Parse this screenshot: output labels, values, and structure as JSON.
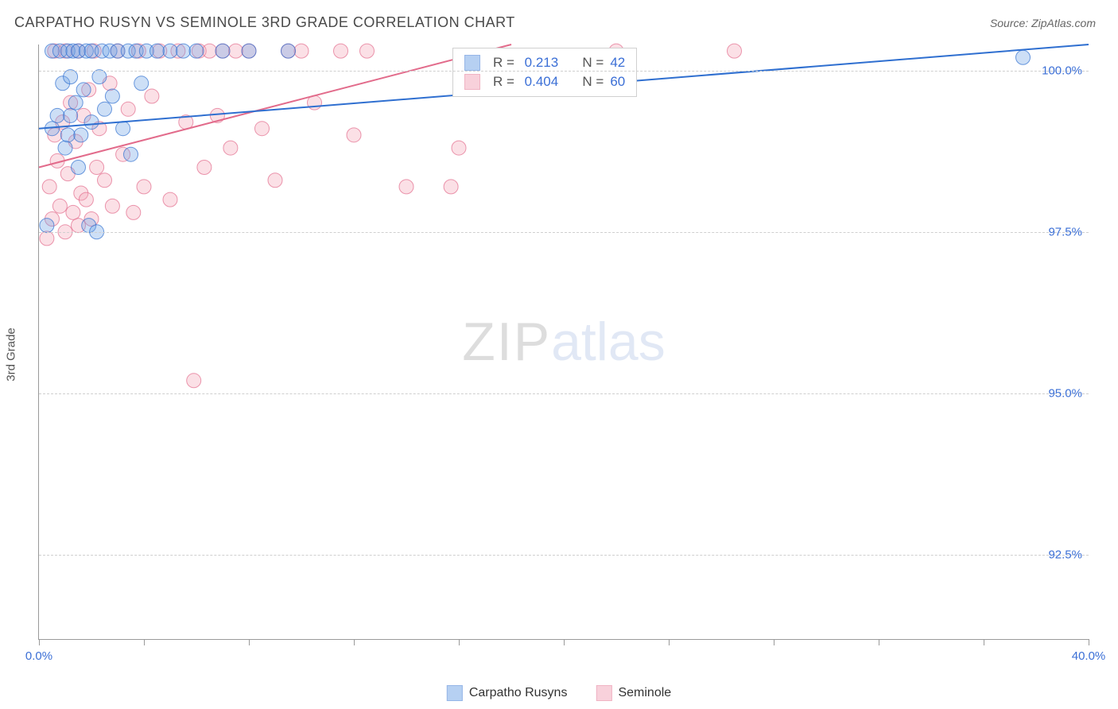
{
  "title": "CARPATHO RUSYN VS SEMINOLE 3RD GRADE CORRELATION CHART",
  "source_label": "Source: ZipAtlas.com",
  "watermark": {
    "part1": "ZIP",
    "part2": "atlas"
  },
  "ylabel": "3rd Grade",
  "chart": {
    "type": "scatter",
    "xlim": [
      0,
      40
    ],
    "ylim": [
      91.2,
      100.4
    ],
    "x_tick_positions": [
      0,
      4,
      8,
      12,
      16,
      20,
      24,
      28,
      32,
      36,
      40
    ],
    "x_tick_labels": {
      "0": "0.0%",
      "40": "40.0%"
    },
    "y_gridlines": [
      92.5,
      95.0,
      97.5,
      100.0
    ],
    "y_tick_labels": [
      "92.5%",
      "95.0%",
      "97.5%",
      "100.0%"
    ],
    "grid_color": "#cfcfcf",
    "axis_color": "#9a9a9a",
    "background_color": "#ffffff",
    "tick_label_color": "#3b6fd6",
    "marker_radius": 9,
    "marker_opacity": 0.35,
    "line_width": 2,
    "title_fontsize": 18,
    "label_fontsize": 15
  },
  "series": {
    "carpatho": {
      "label": "Carpatho Rusyns",
      "color_fill": "#6fa3e6",
      "color_stroke": "#2f6fd0",
      "R": "0.213",
      "N": "42",
      "trend": {
        "x1": 0,
        "y1": 99.1,
        "x2": 40,
        "y2": 100.4
      },
      "points": [
        [
          0.3,
          97.6
        ],
        [
          0.5,
          99.1
        ],
        [
          0.5,
          100.3
        ],
        [
          0.7,
          99.3
        ],
        [
          0.8,
          100.3
        ],
        [
          0.9,
          99.8
        ],
        [
          1.0,
          98.8
        ],
        [
          1.1,
          100.3
        ],
        [
          1.1,
          99.0
        ],
        [
          1.2,
          99.9
        ],
        [
          1.2,
          99.3
        ],
        [
          1.3,
          100.3
        ],
        [
          1.4,
          99.5
        ],
        [
          1.5,
          100.3
        ],
        [
          1.5,
          98.5
        ],
        [
          1.6,
          99.0
        ],
        [
          1.7,
          99.7
        ],
        [
          1.8,
          100.3
        ],
        [
          1.9,
          97.6
        ],
        [
          2.0,
          100.3
        ],
        [
          2.0,
          99.2
        ],
        [
          2.2,
          97.5
        ],
        [
          2.3,
          99.9
        ],
        [
          2.4,
          100.3
        ],
        [
          2.5,
          99.4
        ],
        [
          2.7,
          100.3
        ],
        [
          2.8,
          99.6
        ],
        [
          3.0,
          100.3
        ],
        [
          3.2,
          99.1
        ],
        [
          3.4,
          100.3
        ],
        [
          3.5,
          98.7
        ],
        [
          3.7,
          100.3
        ],
        [
          3.9,
          99.8
        ],
        [
          4.1,
          100.3
        ],
        [
          4.5,
          100.3
        ],
        [
          5.0,
          100.3
        ],
        [
          5.5,
          100.3
        ],
        [
          6.0,
          100.3
        ],
        [
          7.0,
          100.3
        ],
        [
          8.0,
          100.3
        ],
        [
          9.5,
          100.3
        ],
        [
          37.5,
          100.2
        ]
      ]
    },
    "seminole": {
      "label": "Seminole",
      "color_fill": "#f3a5b8",
      "color_stroke": "#e26b8b",
      "R": "0.404",
      "N": "60",
      "trend": {
        "x1": 0,
        "y1": 98.5,
        "x2": 18,
        "y2": 100.4
      },
      "points": [
        [
          0.3,
          97.4
        ],
        [
          0.4,
          98.2
        ],
        [
          0.5,
          97.7
        ],
        [
          0.6,
          99.0
        ],
        [
          0.6,
          100.3
        ],
        [
          0.7,
          98.6
        ],
        [
          0.8,
          97.9
        ],
        [
          0.9,
          99.2
        ],
        [
          1.0,
          100.3
        ],
        [
          1.0,
          97.5
        ],
        [
          1.1,
          98.4
        ],
        [
          1.2,
          99.5
        ],
        [
          1.3,
          97.8
        ],
        [
          1.4,
          98.9
        ],
        [
          1.5,
          100.3
        ],
        [
          1.5,
          97.6
        ],
        [
          1.6,
          98.1
        ],
        [
          1.7,
          99.3
        ],
        [
          1.8,
          98.0
        ],
        [
          1.9,
          99.7
        ],
        [
          2.0,
          97.7
        ],
        [
          2.1,
          100.3
        ],
        [
          2.2,
          98.5
        ],
        [
          2.3,
          99.1
        ],
        [
          2.5,
          98.3
        ],
        [
          2.7,
          99.8
        ],
        [
          2.8,
          97.9
        ],
        [
          3.0,
          100.3
        ],
        [
          3.2,
          98.7
        ],
        [
          3.4,
          99.4
        ],
        [
          3.6,
          97.8
        ],
        [
          3.8,
          100.3
        ],
        [
          4.0,
          98.2
        ],
        [
          4.3,
          99.6
        ],
        [
          4.6,
          100.3
        ],
        [
          5.0,
          98.0
        ],
        [
          5.3,
          100.3
        ],
        [
          5.6,
          99.2
        ],
        [
          5.9,
          95.2
        ],
        [
          6.1,
          100.3
        ],
        [
          6.3,
          98.5
        ],
        [
          6.5,
          100.3
        ],
        [
          6.8,
          99.3
        ],
        [
          7.0,
          100.3
        ],
        [
          7.3,
          98.8
        ],
        [
          7.5,
          100.3
        ],
        [
          8.0,
          100.3
        ],
        [
          8.5,
          99.1
        ],
        [
          9.0,
          98.3
        ],
        [
          9.5,
          100.3
        ],
        [
          10.0,
          100.3
        ],
        [
          10.5,
          99.5
        ],
        [
          11.5,
          100.3
        ],
        [
          12.0,
          99.0
        ],
        [
          12.5,
          100.3
        ],
        [
          14.0,
          98.2
        ],
        [
          15.7,
          98.2
        ],
        [
          16.0,
          98.8
        ],
        [
          22.0,
          100.3
        ],
        [
          26.5,
          100.3
        ]
      ]
    }
  },
  "stat_box": {
    "r_label": "R =",
    "n_label": "N ="
  },
  "legend": {
    "items": [
      "carpatho",
      "seminole"
    ]
  }
}
